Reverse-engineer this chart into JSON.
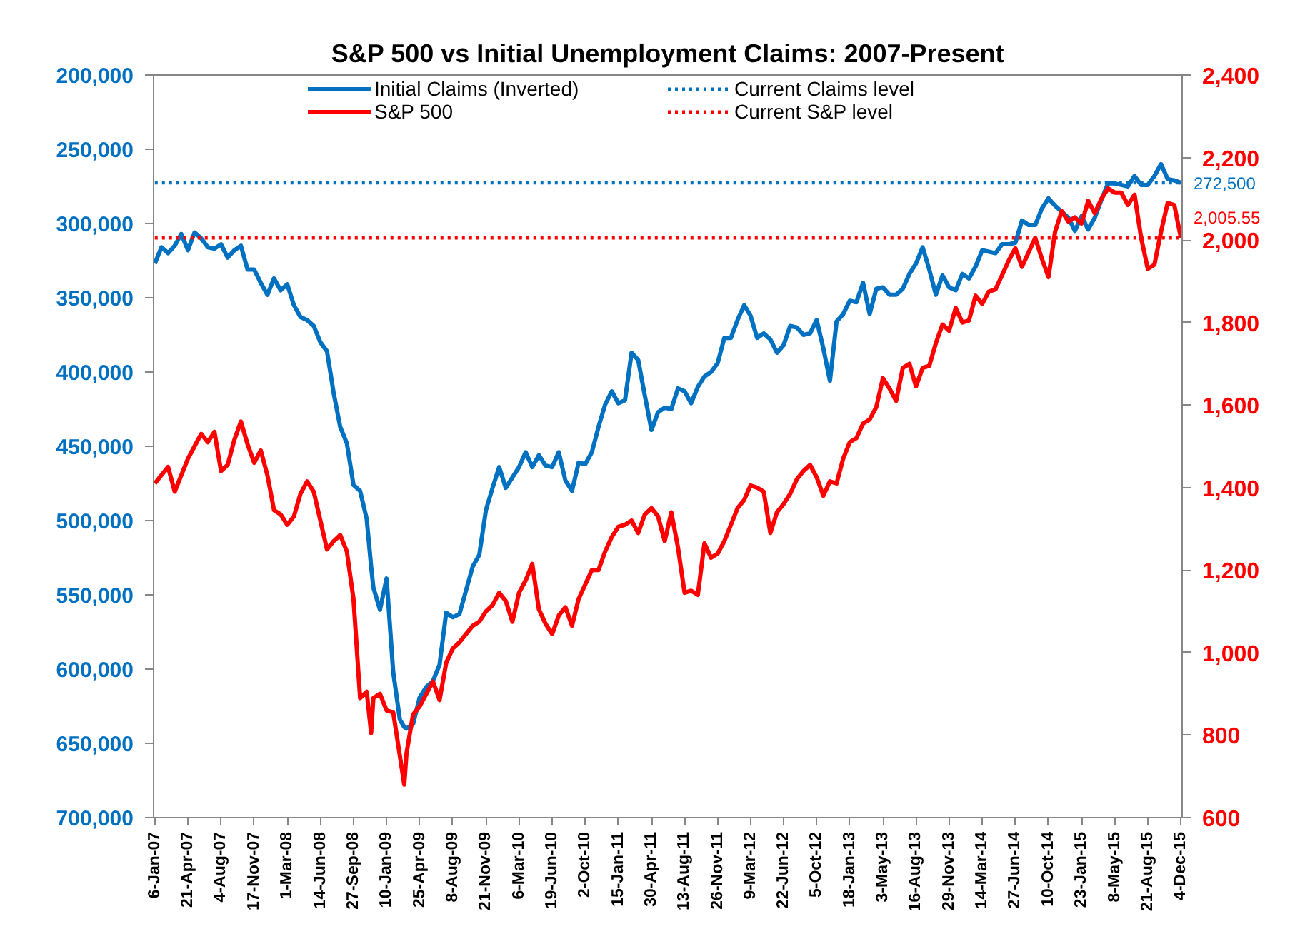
{
  "chart_data": {
    "type": "line",
    "title": "S&P 500 vs Initial Unemployment Claims: 2007-Present",
    "x": [
      "2007-01-06",
      "2007-01-27",
      "2007-02-17",
      "2007-03-10",
      "2007-03-31",
      "2007-04-21",
      "2007-05-12",
      "2007-06-02",
      "2007-06-23",
      "2007-07-14",
      "2007-08-04",
      "2007-08-25",
      "2007-09-15",
      "2007-10-06",
      "2007-10-27",
      "2007-11-17",
      "2007-12-08",
      "2007-12-29",
      "2008-01-19",
      "2008-02-09",
      "2008-03-01",
      "2008-03-22",
      "2008-04-12",
      "2008-05-03",
      "2008-05-24",
      "2008-06-14",
      "2008-07-05",
      "2008-07-26",
      "2008-08-16",
      "2008-09-06",
      "2008-09-27",
      "2008-10-18",
      "2008-11-08",
      "2008-11-22",
      "2008-11-29",
      "2008-12-20",
      "2009-01-10",
      "2009-01-31",
      "2009-02-21",
      "2009-03-07",
      "2009-03-14",
      "2009-04-04",
      "2009-04-25",
      "2009-05-16",
      "2009-06-06",
      "2009-06-27",
      "2009-07-18",
      "2009-08-08",
      "2009-08-29",
      "2009-09-19",
      "2009-10-10",
      "2009-10-31",
      "2009-11-21",
      "2009-12-12",
      "2010-01-02",
      "2010-01-23",
      "2010-02-13",
      "2010-03-06",
      "2010-03-27",
      "2010-04-17",
      "2010-05-08",
      "2010-05-29",
      "2010-06-19",
      "2010-07-10",
      "2010-07-31",
      "2010-08-21",
      "2010-09-11",
      "2010-10-02",
      "2010-10-23",
      "2010-11-13",
      "2010-12-04",
      "2010-12-25",
      "2011-01-15",
      "2011-02-05",
      "2011-02-26",
      "2011-03-19",
      "2011-04-09",
      "2011-04-30",
      "2011-05-21",
      "2011-06-11",
      "2011-07-02",
      "2011-07-23",
      "2011-08-13",
      "2011-09-03",
      "2011-09-24",
      "2011-10-15",
      "2011-11-05",
      "2011-11-26",
      "2011-12-17",
      "2012-01-07",
      "2012-01-28",
      "2012-02-18",
      "2012-03-09",
      "2012-03-30",
      "2012-04-20",
      "2012-05-11",
      "2012-06-01",
      "2012-06-22",
      "2012-07-13",
      "2012-08-03",
      "2012-08-24",
      "2012-09-14",
      "2012-10-05",
      "2012-10-26",
      "2012-11-16",
      "2012-12-07",
      "2012-12-28",
      "2013-01-18",
      "2013-02-08",
      "2013-03-01",
      "2013-03-22",
      "2013-04-12",
      "2013-05-03",
      "2013-05-24",
      "2013-06-14",
      "2013-07-05",
      "2013-07-26",
      "2013-08-16",
      "2013-09-06",
      "2013-09-27",
      "2013-10-18",
      "2013-11-08",
      "2013-11-29",
      "2013-12-20",
      "2014-01-10",
      "2014-01-31",
      "2014-02-21",
      "2014-03-14",
      "2014-04-04",
      "2014-04-25",
      "2014-05-16",
      "2014-06-06",
      "2014-06-27",
      "2014-07-18",
      "2014-08-08",
      "2014-08-29",
      "2014-09-19",
      "2014-10-10",
      "2014-10-31",
      "2014-11-21",
      "2014-12-12",
      "2015-01-02",
      "2015-01-23",
      "2015-02-13",
      "2015-03-06",
      "2015-03-27",
      "2015-04-17",
      "2015-05-08",
      "2015-05-29",
      "2015-06-19",
      "2015-07-10",
      "2015-07-31",
      "2015-08-21",
      "2015-09-11",
      "2015-10-02",
      "2015-10-23",
      "2015-11-13",
      "2015-12-04"
    ],
    "series": [
      {
        "name": "Initial Claims (Inverted)",
        "color": "#0070c0",
        "values": [
          327000,
          316000,
          320000,
          315000,
          307000,
          318000,
          306000,
          310000,
          316000,
          317000,
          314000,
          323000,
          318000,
          315000,
          331000,
          331000,
          340000,
          348000,
          337000,
          345000,
          341000,
          355000,
          363000,
          365000,
          369000,
          380000,
          386000,
          414000,
          437000,
          448000,
          476000,
          480000,
          499000,
          531000,
          545000,
          560000,
          539000,
          602000,
          634000,
          639000,
          640000,
          637000,
          619000,
          612000,
          608000,
          597000,
          562000,
          565000,
          563000,
          547000,
          531000,
          523000,
          493000,
          478000,
          464000,
          478000,
          471000,
          464000,
          454000,
          464000,
          456000,
          463000,
          464000,
          454000,
          473000,
          480000,
          461000,
          462000,
          454000,
          437000,
          422000,
          413000,
          421000,
          419000,
          387000,
          392000,
          416000,
          439000,
          427000,
          424000,
          425000,
          411000,
          413000,
          421000,
          410000,
          403000,
          400000,
          394000,
          377000,
          377000,
          365000,
          355000,
          362000,
          377000,
          374000,
          378000,
          387000,
          382000,
          369000,
          370000,
          375000,
          374000,
          365000,
          384000,
          406000,
          366000,
          361000,
          352000,
          353000,
          340000,
          361000,
          344000,
          343000,
          348000,
          348000,
          344000,
          334000,
          327000,
          316000,
          331000,
          348000,
          335000,
          343000,
          345000,
          334000,
          337000,
          329000,
          318000,
          319000,
          320000,
          314000,
          314000,
          313000,
          298000,
          301000,
          301000,
          290000,
          283000,
          288000,
          292000,
          296000,
          305000,
          295000,
          304000,
          296000,
          284000,
          273000,
          273000,
          274000,
          275000,
          268000,
          274000,
          274000,
          268000,
          260000,
          270000,
          271000,
          272500
        ]
      },
      {
        "name": "S&P 500",
        "color": "#ff0000",
        "axis": "y2",
        "values": [
          1410,
          1430,
          1450,
          1390,
          1430,
          1470,
          1500,
          1530,
          1510,
          1535,
          1440,
          1455,
          1515,
          1560,
          1505,
          1460,
          1490,
          1430,
          1345,
          1335,
          1310,
          1330,
          1385,
          1415,
          1390,
          1320,
          1250,
          1270,
          1285,
          1245,
          1130,
          890,
          905,
          805,
          890,
          900,
          860,
          855,
          750,
          680,
          755,
          850,
          870,
          900,
          930,
          885,
          975,
          1010,
          1025,
          1045,
          1065,
          1075,
          1100,
          1115,
          1145,
          1125,
          1075,
          1145,
          1175,
          1215,
          1105,
          1070,
          1045,
          1090,
          1110,
          1065,
          1130,
          1165,
          1200,
          1200,
          1245,
          1280,
          1305,
          1310,
          1320,
          1290,
          1335,
          1350,
          1330,
          1270,
          1340,
          1255,
          1145,
          1150,
          1140,
          1265,
          1230,
          1240,
          1270,
          1310,
          1350,
          1370,
          1405,
          1400,
          1390,
          1290,
          1340,
          1360,
          1385,
          1420,
          1440,
          1455,
          1425,
          1380,
          1415,
          1410,
          1470,
          1510,
          1520,
          1555,
          1565,
          1595,
          1665,
          1640,
          1610,
          1690,
          1700,
          1645,
          1690,
          1695,
          1750,
          1795,
          1780,
          1835,
          1800,
          1805,
          1865,
          1845,
          1875,
          1880,
          1915,
          1950,
          1980,
          1935,
          1970,
          2005,
          1955,
          1910,
          2020,
          2070,
          2045,
          2055,
          2040,
          2095,
          2065,
          2100,
          2125,
          2115,
          2115,
          2085,
          2110,
          2005,
          1930,
          1940,
          2020,
          2090,
          2085,
          2005.55
        ]
      },
      {
        "name": "Current Claims level",
        "color": "#0070c0",
        "line_style": "dotted",
        "x": [
          "2007-01-06",
          "2015-12-04"
        ],
        "values": [
          272500,
          272500
        ],
        "value_labels": [
          null,
          "272,500"
        ]
      },
      {
        "name": "Current S&P level",
        "color": "#ff0000",
        "line_style": "dotted",
        "axis": "y2",
        "x": [
          "2007-01-06",
          "2015-12-04"
        ],
        "values": [
          2005.55,
          2005.55
        ],
        "value_labels": [
          null,
          "2,005.55"
        ]
      }
    ],
    "xlim": [
      "2007-01-02",
      "2015-12-08"
    ],
    "xticks": [
      {
        "value": "2007-01-06",
        "label": "6-Jan-07"
      },
      {
        "value": "2007-04-21",
        "label": "21-Apr-07"
      },
      {
        "value": "2007-08-04",
        "label": "4-Aug-07"
      },
      {
        "value": "2007-11-17",
        "label": "17-Nov-07"
      },
      {
        "value": "2008-03-01",
        "label": "1-Mar-08"
      },
      {
        "value": "2008-06-14",
        "label": "14-Jun-08"
      },
      {
        "value": "2008-09-27",
        "label": "27-Sep-08"
      },
      {
        "value": "2009-01-10",
        "label": "10-Jan-09"
      },
      {
        "value": "2009-04-25",
        "label": "25-Apr-09"
      },
      {
        "value": "2009-08-08",
        "label": "8-Aug-09"
      },
      {
        "value": "2009-11-21",
        "label": "21-Nov-09"
      },
      {
        "value": "2010-03-06",
        "label": "6-Mar-10"
      },
      {
        "value": "2010-06-19",
        "label": "19-Jun-10"
      },
      {
        "value": "2010-10-02",
        "label": "2-Oct-10"
      },
      {
        "value": "2011-01-15",
        "label": "15-Jan-11"
      },
      {
        "value": "2011-04-30",
        "label": "30-Apr-11"
      },
      {
        "value": "2011-08-13",
        "label": "13-Aug-11"
      },
      {
        "value": "2011-11-26",
        "label": "26-Nov-11"
      },
      {
        "value": "2012-03-09",
        "label": "9-Mar-12"
      },
      {
        "value": "2012-06-22",
        "label": "22-Jun-12"
      },
      {
        "value": "2012-10-05",
        "label": "5-Oct-12"
      },
      {
        "value": "2013-01-18",
        "label": "18-Jan-13"
      },
      {
        "value": "2013-05-03",
        "label": "3-May-13"
      },
      {
        "value": "2013-08-16",
        "label": "16-Aug-13"
      },
      {
        "value": "2013-11-29",
        "label": "29-Nov-13"
      },
      {
        "value": "2014-03-14",
        "label": "14-Mar-14"
      },
      {
        "value": "2014-06-27",
        "label": "27-Jun-14"
      },
      {
        "value": "2014-10-10",
        "label": "10-Oct-14"
      },
      {
        "value": "2015-01-23",
        "label": "23-Jan-15"
      },
      {
        "value": "2015-05-08",
        "label": "8-May-15"
      },
      {
        "value": "2015-08-21",
        "label": "21-Aug-15"
      },
      {
        "value": "2015-12-04",
        "label": "4-Dec-15"
      }
    ],
    "ylim": [
      700000,
      200000
    ],
    "yticks": [
      {
        "value": 200000,
        "label": "200,000"
      },
      {
        "value": 250000,
        "label": "250,000"
      },
      {
        "value": 300000,
        "label": "300,000"
      },
      {
        "value": 350000,
        "label": "350,000"
      },
      {
        "value": 400000,
        "label": "400,000"
      },
      {
        "value": 450000,
        "label": "450,000"
      },
      {
        "value": 500000,
        "label": "500,000"
      },
      {
        "value": 550000,
        "label": "550,000"
      },
      {
        "value": 600000,
        "label": "600,000"
      },
      {
        "value": 650000,
        "label": "650,000"
      },
      {
        "value": 700000,
        "label": "700,000"
      }
    ],
    "y2lim": [
      600,
      2400
    ],
    "y2ticks": [
      600,
      800,
      {
        "value": 1000,
        "label": "1,000"
      },
      {
        "value": 1200,
        "label": "1,200"
      },
      {
        "value": 1400,
        "label": "1,400"
      },
      {
        "value": 1600,
        "label": "1,600"
      },
      {
        "value": 1800,
        "label": "1,800"
      },
      {
        "value": 2000,
        "label": "2,000"
      },
      {
        "value": 2200,
        "label": "2,200"
      },
      {
        "value": 2400,
        "label": "2,400"
      }
    ],
    "grid": false,
    "legend": "top",
    "line_style": "solid"
  }
}
